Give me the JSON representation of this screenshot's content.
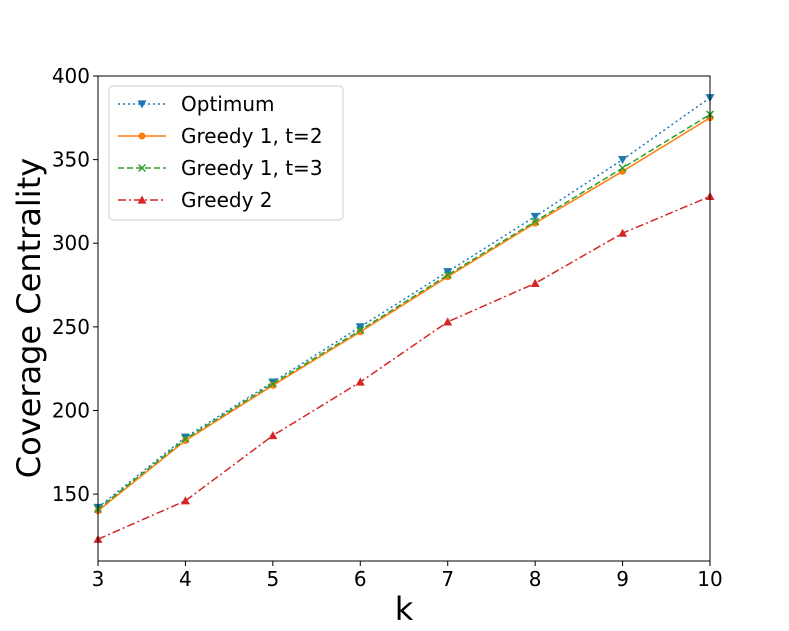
{
  "chart_data": {
    "type": "line",
    "title": "",
    "xlabel": "k",
    "ylabel": "Coverage Centrality",
    "x": [
      3,
      4,
      5,
      6,
      7,
      8,
      9,
      10
    ],
    "xlim": [
      3,
      10
    ],
    "ylim": [
      110,
      400
    ],
    "xticks": [
      "3",
      "4",
      "5",
      "6",
      "7",
      "8",
      "9",
      "10"
    ],
    "yticks": [
      "150",
      "200",
      "250",
      "300",
      "350",
      "400"
    ],
    "grid": false,
    "legend_position": "upper-left",
    "series": [
      {
        "name": "Optimum",
        "color": "#1f77b4",
        "line_style": "dotted",
        "marker": "triangle-down",
        "values": [
          142,
          184,
          217,
          250,
          283,
          316,
          350,
          387
        ]
      },
      {
        "name": "Greedy 1, t=2",
        "color": "#ff7f0e",
        "line_style": "solid",
        "marker": "circle",
        "values": [
          140,
          182,
          215,
          247,
          280,
          312,
          343,
          375
        ]
      },
      {
        "name": "Greedy 1, t=3",
        "color": "#2ca02c",
        "line_style": "dashed",
        "marker": "x",
        "values": [
          141,
          183,
          216,
          248,
          281,
          313,
          345,
          377
        ]
      },
      {
        "name": "Greedy 2",
        "color": "#d62728",
        "line_style": "dashdot",
        "marker": "triangle-up",
        "values": [
          123,
          146,
          185,
          217,
          253,
          276,
          306,
          328
        ]
      }
    ]
  }
}
